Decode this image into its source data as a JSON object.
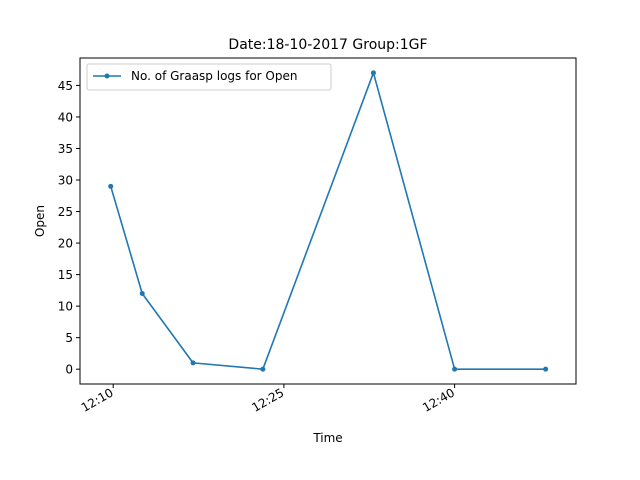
{
  "chart_data": {
    "type": "line",
    "title": "Date:18-10-2017  Group:1GF",
    "xlabel": "Time",
    "ylabel": "Open",
    "x": [
      "12:09:47",
      "12:12:33",
      "12:17:01",
      "12:23:09",
      "12:32:52",
      "12:40:00",
      "12:48:00"
    ],
    "x_ticks": [
      {
        "label": "12:10",
        "minute": 10
      },
      {
        "label": "12:25",
        "minute": 25
      },
      {
        "label": "12:40",
        "minute": 40
      }
    ],
    "y_ticks": [
      0,
      5,
      10,
      15,
      20,
      25,
      30,
      35,
      40,
      45
    ],
    "ylim": [
      -2.35,
      49.35
    ],
    "xlim": [
      "12:07:05",
      "12:50:40"
    ],
    "grid": false,
    "legend": "top-left",
    "series": [
      {
        "name": "No. of Graasp logs for Open",
        "color": "#1f77b4",
        "marker": "dot",
        "values": [
          29,
          12,
          1,
          0,
          47,
          0,
          0
        ]
      }
    ]
  }
}
